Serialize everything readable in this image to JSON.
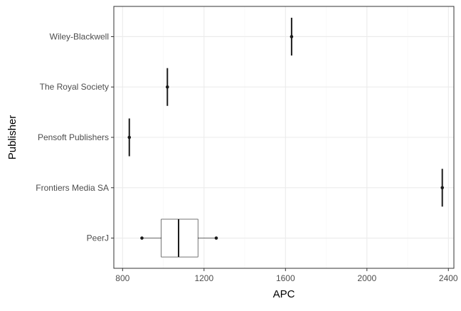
{
  "chart_data": {
    "type": "boxplot",
    "title": "",
    "xlabel": "APC",
    "ylabel": "Publisher",
    "xlim": [
      757,
      2427
    ],
    "x_ticks": [
      800,
      1200,
      1600,
      2000,
      2400
    ],
    "x_tick_labels": [
      "800",
      "1200",
      "1600",
      "2000",
      "2400"
    ],
    "grid": true,
    "orientation": "horizontal",
    "categories": [
      "Wiley-Blackwell",
      "The Royal Society",
      "Pensoft Publishers",
      "Frontiers Media SA",
      "PeerJ"
    ],
    "boxes": [
      {
        "category": "Wiley-Blackwell",
        "min": 1630,
        "q1": 1630,
        "median": 1630,
        "q3": 1630,
        "max": 1630,
        "outliers": [
          1630
        ]
      },
      {
        "category": "The Royal Society",
        "min": 1020,
        "q1": 1020,
        "median": 1020,
        "q3": 1020,
        "max": 1020,
        "outliers": [
          1020
        ]
      },
      {
        "category": "Pensoft Publishers",
        "min": 833,
        "q1": 833,
        "median": 833,
        "q3": 833,
        "max": 833,
        "outliers": [
          833
        ]
      },
      {
        "category": "Frontiers Media SA",
        "min": 2370,
        "q1": 2370,
        "median": 2370,
        "q3": 2370,
        "max": 2370,
        "outliers": [
          2370
        ]
      },
      {
        "category": "PeerJ",
        "min": 895,
        "q1": 990,
        "median": 1075,
        "q3": 1170,
        "max": 1260,
        "outliers": [
          895,
          1260
        ]
      }
    ],
    "colors": {
      "panel_border": "#333333",
      "grid_major": "#ebebeb",
      "grid_minor": "#f5f5f5",
      "box_fill": "#ffffff",
      "stroke": "#1a1a1a",
      "tick_text": "#4d4d4d"
    }
  }
}
